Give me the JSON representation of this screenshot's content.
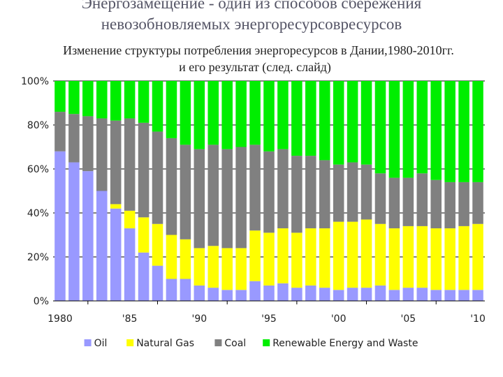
{
  "header": {
    "title_line1": "Энергозамещение -  один из способов сбережения",
    "title_line2": "невозобновляемых энергоресурсовресурсов",
    "subtitle_line1": "Изменение структуры потребления энергоресурсов в Дании,1980-2010гг.",
    "subtitle_line2": "и его результат (след. слайд)"
  },
  "chart_data": {
    "type": "bar",
    "stacked": true,
    "percent": true,
    "x": [
      1980,
      1981,
      1982,
      1983,
      1984,
      1985,
      1986,
      1987,
      1988,
      1989,
      1990,
      1991,
      1992,
      1993,
      1994,
      1995,
      1996,
      1997,
      1998,
      1999,
      2000,
      2001,
      2002,
      2003,
      2004,
      2005,
      2006,
      2007,
      2008,
      2009,
      2010
    ],
    "x_tick_labels": [
      "1980",
      "'85",
      "'90",
      "'95",
      "'00",
      "'05",
      "'10"
    ],
    "y_tick_labels": [
      "0%",
      "20%",
      "40%",
      "60%",
      "80%",
      "100%"
    ],
    "ylim": [
      0,
      100
    ],
    "grid": true,
    "legend_position": "bottom",
    "series": [
      {
        "name": "Oil",
        "color": "#9999ff",
        "values": [
          68,
          63,
          59,
          50,
          42,
          33,
          22,
          16,
          10,
          10,
          7,
          6,
          5,
          5,
          9,
          7,
          8,
          6,
          7,
          6,
          5,
          6,
          6,
          7,
          5,
          6,
          6,
          5,
          5,
          5,
          5
        ]
      },
      {
        "name": "Natural Gas",
        "color": "#ffff00",
        "values": [
          0,
          0,
          0,
          0,
          2,
          8,
          16,
          19,
          20,
          18,
          17,
          19,
          19,
          19,
          23,
          24,
          25,
          25,
          26,
          27,
          31,
          30,
          31,
          28,
          28,
          28,
          28,
          28,
          28,
          29,
          30
        ]
      },
      {
        "name": "Coal",
        "color": "#808080",
        "values": [
          18,
          22,
          25,
          33,
          38,
          42,
          43,
          42,
          44,
          43,
          45,
          46,
          45,
          46,
          39,
          37,
          36,
          35,
          33,
          31,
          26,
          27,
          25,
          23,
          23,
          22,
          24,
          22,
          21,
          20,
          19
        ]
      },
      {
        "name": "Renewable Energy and Waste",
        "color": "#00ee00",
        "values": [
          14,
          15,
          16,
          17,
          18,
          17,
          19,
          23,
          26,
          29,
          31,
          29,
          31,
          30,
          29,
          32,
          31,
          34,
          34,
          36,
          38,
          37,
          38,
          42,
          44,
          44,
          42,
          45,
          46,
          46,
          46
        ]
      }
    ]
  }
}
